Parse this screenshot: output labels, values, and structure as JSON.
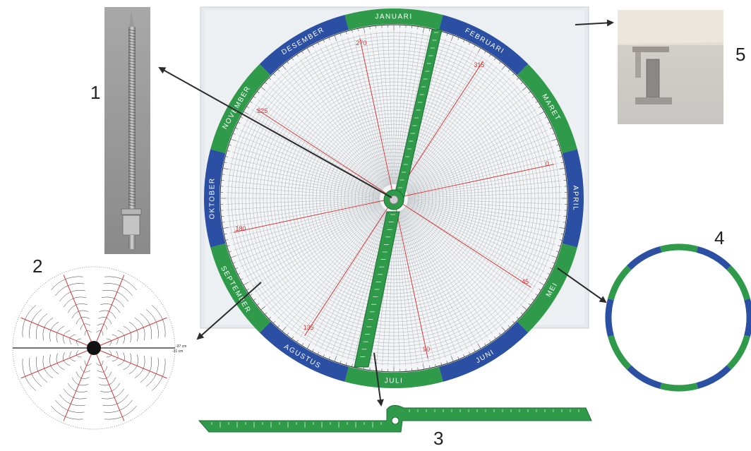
{
  "parts": [
    {
      "id": "1",
      "label": "1"
    },
    {
      "id": "2",
      "label": "2"
    },
    {
      "id": "3",
      "label": "3"
    },
    {
      "id": "4",
      "label": "4"
    },
    {
      "id": "5",
      "label": "5"
    }
  ],
  "months": [
    "JANUARI",
    "FEBRUARI",
    "MARET",
    "APRIL",
    "MEI",
    "JUNI",
    "JULI",
    "AGUSTUS",
    "SEPTEMBER",
    "OKTOBER",
    "NOVEMBER",
    "DESEMBER"
  ],
  "degree_labels": [
    "0",
    "45",
    "90",
    "135",
    "180",
    "225",
    "270",
    "315"
  ],
  "small_scale_labels": [
    "-37 cm",
    "-31 cm"
  ],
  "colors": {
    "green": "#2e9a4a",
    "blue": "#2a4fa3",
    "red_line": "#d23a3a",
    "board": "#e6eaee",
    "arrow": "#2b2b2b"
  }
}
